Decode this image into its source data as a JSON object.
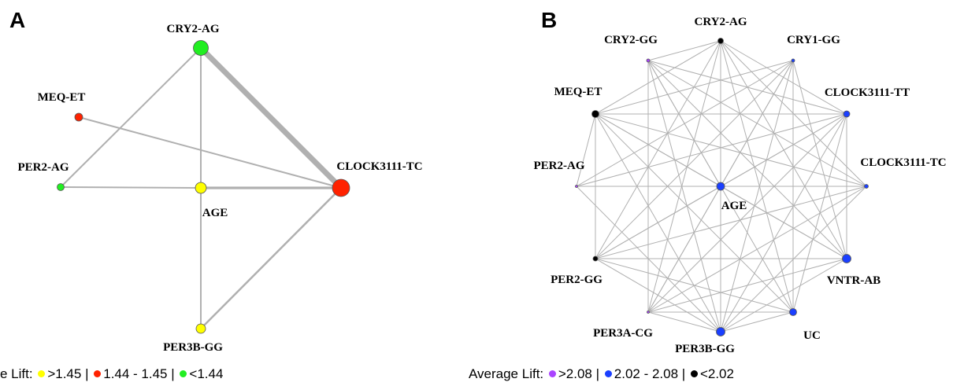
{
  "colors": {
    "edge": "#b0b0b0",
    "yellow": "#ffff00",
    "red": "#ff2200",
    "green": "#22ee22",
    "purple": "#aa44ff",
    "blue": "#1a3fff",
    "black": "#000000"
  },
  "panel_a": {
    "letter": "A",
    "legend": {
      "prefix": "e Lift:",
      "items": [
        {
          "color": "yellow",
          "label": ">1.45"
        },
        {
          "color": "red",
          "label": "1.44 - 1.45"
        },
        {
          "color": "green",
          "label": "<1.44"
        }
      ]
    },
    "nodes": [
      {
        "id": "CRY2-AG",
        "label": "CRY2-AG",
        "color": "green"
      },
      {
        "id": "MEQ-ET",
        "label": "MEQ-ET",
        "color": "red"
      },
      {
        "id": "PER2-AG",
        "label": "PER2-AG",
        "color": "green"
      },
      {
        "id": "AGE",
        "label": "AGE",
        "color": "yellow"
      },
      {
        "id": "CLOCK3111-TC",
        "label": "CLOCK3111-TC",
        "color": "red"
      },
      {
        "id": "PER3B-GG",
        "label": "PER3B-GG",
        "color": "yellow"
      }
    ],
    "edges": [
      [
        "CRY2-AG",
        "CLOCK3111-TC"
      ],
      [
        "CRY2-AG",
        "PER2-AG"
      ],
      [
        "CRY2-AG",
        "AGE"
      ],
      [
        "MEQ-ET",
        "CLOCK3111-TC"
      ],
      [
        "PER2-AG",
        "AGE"
      ],
      [
        "AGE",
        "CLOCK3111-TC"
      ],
      [
        "AGE",
        "PER3B-GG"
      ],
      [
        "CLOCK3111-TC",
        "PER3B-GG"
      ]
    ]
  },
  "panel_b": {
    "letter": "B",
    "legend": {
      "prefix": "Average Lift:",
      "items": [
        {
          "color": "purple",
          "label": ">2.08"
        },
        {
          "color": "blue",
          "label": "2.02 - 2.08"
        },
        {
          "color": "black",
          "label": "<2.02"
        }
      ]
    },
    "nodes": [
      {
        "id": "CRY2-AG",
        "label": "CRY2-AG",
        "color": "black"
      },
      {
        "id": "CRY2-GG",
        "label": "CRY2-GG",
        "color": "purple"
      },
      {
        "id": "CRY1-GG",
        "label": "CRY1-GG",
        "color": "blue"
      },
      {
        "id": "MEQ-ET",
        "label": "MEQ-ET",
        "color": "black"
      },
      {
        "id": "CLOCK3111-TT",
        "label": "CLOCK3111-TT",
        "color": "blue"
      },
      {
        "id": "PER2-AG",
        "label": "PER2-AG",
        "color": "purple"
      },
      {
        "id": "CLOCK3111-TC",
        "label": "CLOCK3111-TC",
        "color": "blue"
      },
      {
        "id": "AGE",
        "label": "AGE",
        "color": "blue"
      },
      {
        "id": "PER2-GG",
        "label": "PER2-GG",
        "color": "black"
      },
      {
        "id": "VNTR-AB",
        "label": "VNTR-AB",
        "color": "blue"
      },
      {
        "id": "PER3A-CG",
        "label": "PER3A-CG",
        "color": "purple"
      },
      {
        "id": "UC",
        "label": "UC",
        "color": "blue"
      },
      {
        "id": "PER3B-GG",
        "label": "PER3B-GG",
        "color": "blue"
      }
    ],
    "edges": [
      [
        "CRY2-AG",
        "AGE"
      ],
      [
        "CRY2-AG",
        "PER3B-GG"
      ],
      [
        "CRY2-AG",
        "CLOCK3111-TC"
      ],
      [
        "CRY2-AG",
        "VNTR-AB"
      ],
      [
        "CRY2-AG",
        "MEQ-ET"
      ],
      [
        "CRY2-AG",
        "PER2-GG"
      ],
      [
        "CRY2-AG",
        "UC"
      ],
      [
        "CRY2-AG",
        "CRY2-GG"
      ],
      [
        "CRY2-AG",
        "PER3A-CG"
      ],
      [
        "CRY2-AG",
        "CLOCK3111-TT"
      ],
      [
        "CRY2-GG",
        "PER3B-GG"
      ],
      [
        "CRY2-GG",
        "CLOCK3111-TT"
      ],
      [
        "CRY2-GG",
        "CLOCK3111-TC"
      ],
      [
        "CRY2-GG",
        "VNTR-AB"
      ],
      [
        "CRY2-GG",
        "UC"
      ],
      [
        "CRY2-GG",
        "PER3A-CG"
      ],
      [
        "CRY2-GG",
        "AGE"
      ],
      [
        "CRY1-GG",
        "MEQ-ET"
      ],
      [
        "CRY1-GG",
        "PER2-GG"
      ],
      [
        "CRY1-GG",
        "PER3A-CG"
      ],
      [
        "CRY1-GG",
        "PER3B-GG"
      ],
      [
        "CRY1-GG",
        "UC"
      ],
      [
        "CRY1-GG",
        "VNTR-AB"
      ],
      [
        "CRY1-GG",
        "AGE"
      ],
      [
        "CRY1-GG",
        "PER2-AG"
      ],
      [
        "MEQ-ET",
        "PER2-GG"
      ],
      [
        "MEQ-ET",
        "CLOCK3111-TT"
      ],
      [
        "MEQ-ET",
        "CLOCK3111-TC"
      ],
      [
        "MEQ-ET",
        "VNTR-AB"
      ],
      [
        "MEQ-ET",
        "UC"
      ],
      [
        "MEQ-ET",
        "PER3B-GG"
      ],
      [
        "MEQ-ET",
        "AGE"
      ],
      [
        "MEQ-ET",
        "PER2-AG"
      ],
      [
        "CLOCK3111-TT",
        "PER2-GG"
      ],
      [
        "CLOCK3111-TT",
        "PER3A-CG"
      ],
      [
        "CLOCK3111-TT",
        "PER3B-GG"
      ],
      [
        "CLOCK3111-TT",
        "VNTR-AB"
      ],
      [
        "CLOCK3111-TT",
        "UC"
      ],
      [
        "CLOCK3111-TT",
        "AGE"
      ],
      [
        "CLOCK3111-TT",
        "PER2-AG"
      ],
      [
        "PER2-AG",
        "CLOCK3111-TC"
      ],
      [
        "PER2-AG",
        "PER3B-GG"
      ],
      [
        "PER2-AG",
        "AGE"
      ],
      [
        "CLOCK3111-TC",
        "PER2-GG"
      ],
      [
        "CLOCK3111-TC",
        "PER3A-CG"
      ],
      [
        "CLOCK3111-TC",
        "PER3B-GG"
      ],
      [
        "CLOCK3111-TC",
        "AGE"
      ],
      [
        "PER2-GG",
        "VNTR-AB"
      ],
      [
        "PER2-GG",
        "PER3B-GG"
      ],
      [
        "PER2-GG",
        "AGE"
      ],
      [
        "PER2-GG",
        "UC"
      ],
      [
        "VNTR-AB",
        "PER3A-CG"
      ],
      [
        "VNTR-AB",
        "PER3B-GG"
      ],
      [
        "VNTR-AB",
        "AGE"
      ],
      [
        "PER3A-CG",
        "UC"
      ],
      [
        "PER3A-CG",
        "PER3B-GG"
      ],
      [
        "PER3A-CG",
        "AGE"
      ],
      [
        "UC",
        "PER3B-GG"
      ],
      [
        "AGE",
        "PER3B-GG"
      ]
    ]
  }
}
